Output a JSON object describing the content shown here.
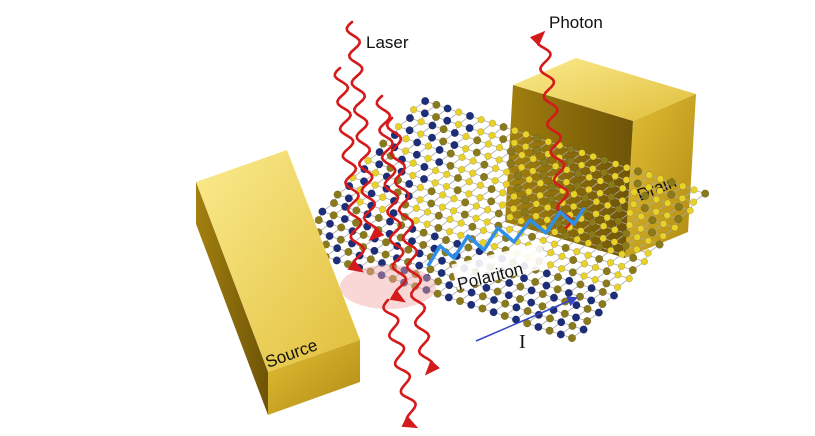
{
  "labels": {
    "laser": "Laser",
    "photon": "Photon",
    "polariton": "Polariton",
    "source": "Source",
    "drain": "Drain",
    "current": "I"
  },
  "colors": {
    "electrode_top": "#f3dc6a",
    "electrode_front": "#c9a520",
    "electrode_side": "#8c6d0c",
    "atom_yellow": "#e8d22a",
    "atom_navy": "#1c2d7a",
    "atom_olive": "#8a7a1a",
    "bond": "#aaaaaa",
    "wave_red": "#d41a1a",
    "polariton_blue": "#2f8fe8",
    "current_arrow": "#3546c8",
    "laser_spot": "#f2a6a6"
  }
}
